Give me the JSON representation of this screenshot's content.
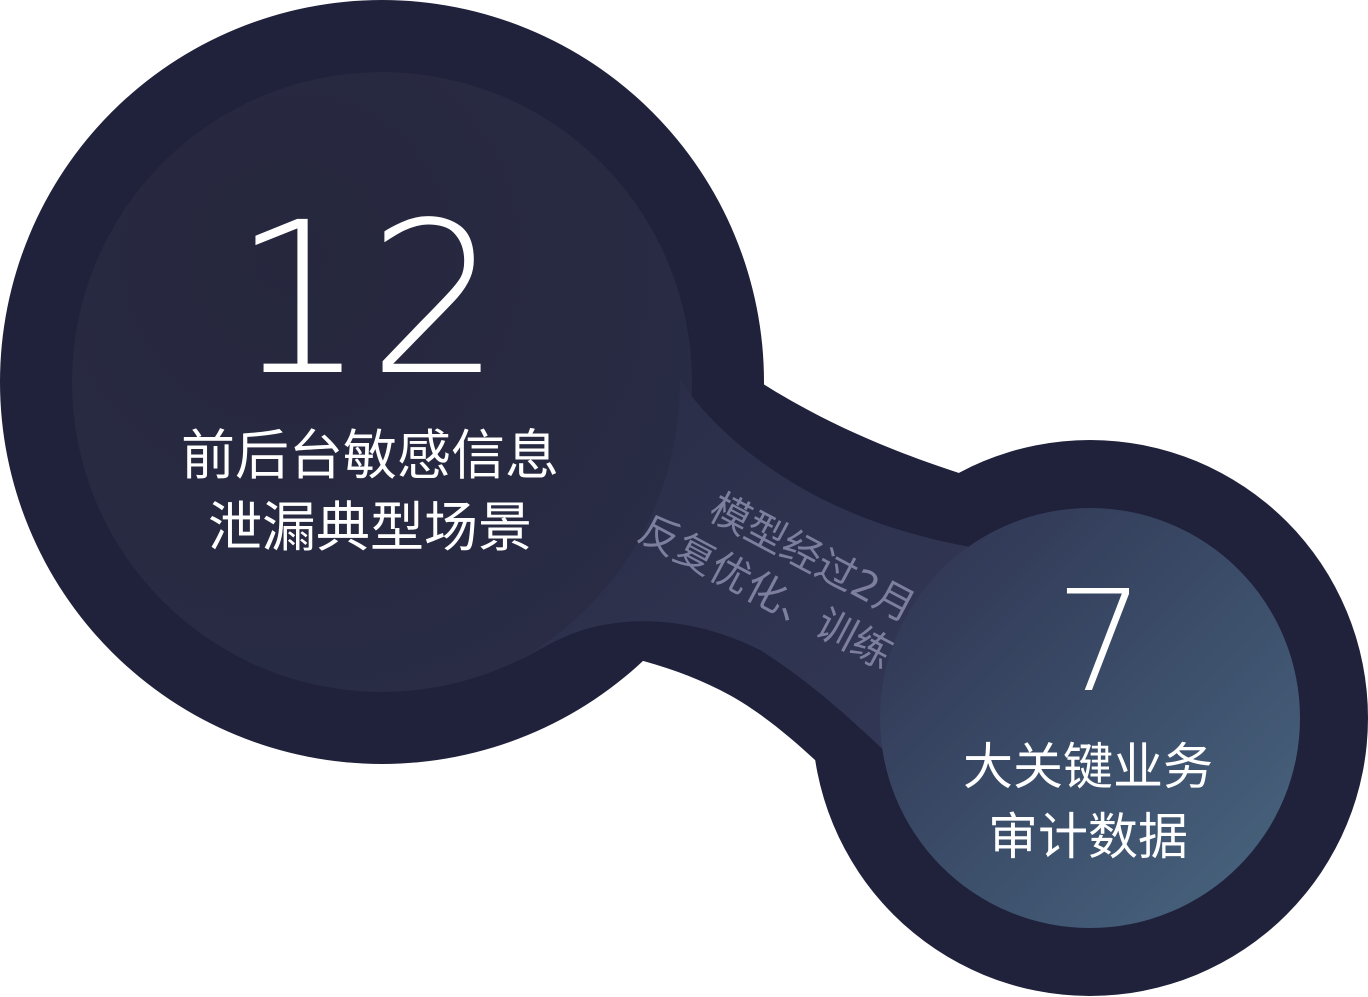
{
  "colors": {
    "outer_ring": "#20213a",
    "inner_left": "#26283f",
    "inner_right_start": "#2f3452",
    "inner_right_end": "#46607a",
    "connector_mid": "#2d3150",
    "text": "#ffffff",
    "note_text": "#7e7f9f"
  },
  "left_stat": {
    "value": "12",
    "label_line1": "前后台敏感信息",
    "label_line2": "泄漏典型场景"
  },
  "right_stat": {
    "value": "7",
    "label_line1": "大关键业务",
    "label_line2": "审计数据"
  },
  "connector_note": {
    "line1": "模型经过2月",
    "line2": "反复优化、训练"
  }
}
